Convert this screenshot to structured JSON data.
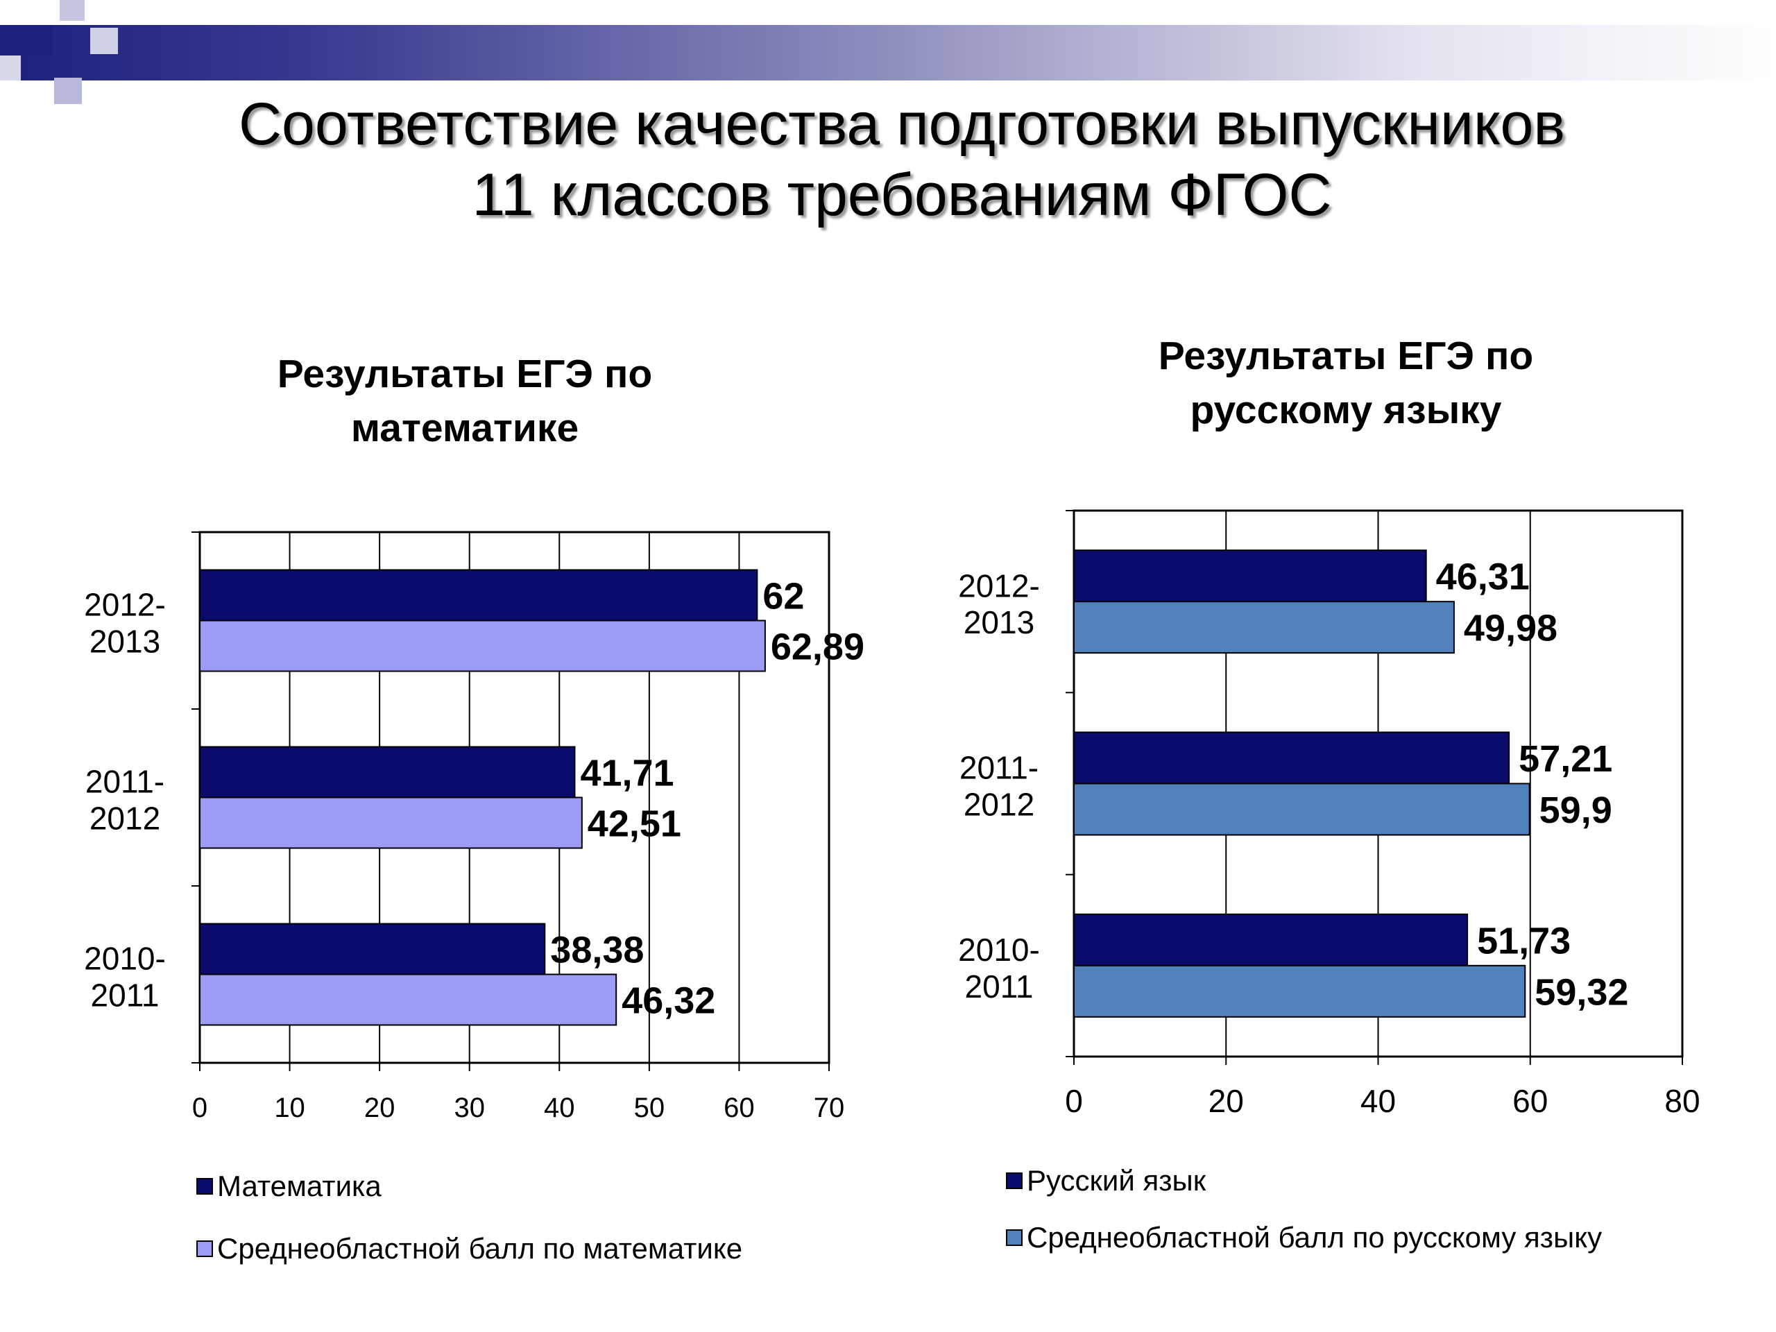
{
  "slide": {
    "title_line1": "Соответствие качества подготовки выпускников",
    "title_line2": "11 классов требованиям ФГОС"
  },
  "colors": {
    "header_band_start": "#1f1f80",
    "header_band_end": "#ffffff",
    "deco_square_dark": "#1f1f80",
    "deco_square_light": "#c6c6e0"
  },
  "chart_data": [
    {
      "type": "bar",
      "orientation": "horizontal",
      "title_line1": "Результаты ЕГЭ по",
      "title_line2": "математике",
      "categories": [
        "2010-2011",
        "2011-2012",
        "2012-2013"
      ],
      "category_labels": [
        [
          "2010-",
          "2011"
        ],
        [
          "2011-",
          "2012"
        ],
        [
          "2012-",
          "2013"
        ]
      ],
      "series": [
        {
          "name": "Математика",
          "values": [
            38.38,
            41.71,
            62
          ],
          "labels": [
            "38,38",
            "41,71",
            "62"
          ],
          "color": "#0b0b6e"
        },
        {
          "name": "Среднеобластной  балл  по  математике",
          "values": [
            46.32,
            42.51,
            62.89
          ],
          "labels": [
            "46,32",
            "42,51",
            "62,89"
          ],
          "color": "#9c9cf6"
        }
      ],
      "xlim": [
        0,
        70
      ],
      "xticks": [
        "0",
        "10",
        "20",
        "30",
        "40",
        "50",
        "60",
        "70"
      ],
      "grid": true,
      "legend_position": "bottom"
    },
    {
      "type": "bar",
      "orientation": "horizontal",
      "title_line1": "Результаты  ЕГЭ по",
      "title_line2": "русскому языку",
      "categories": [
        "2010-2011",
        "2011-2012",
        "2012-2013"
      ],
      "category_labels": [
        [
          "2010-",
          "2011"
        ],
        [
          "2011-",
          "2012"
        ],
        [
          "2012-",
          "2013"
        ]
      ],
      "series": [
        {
          "name": "Русский язык",
          "values": [
            51.73,
            57.21,
            46.31
          ],
          "labels": [
            "51,73",
            "57,21",
            "46,31"
          ],
          "color": "#0b0b6e"
        },
        {
          "name": "Среднеобластной  балл  по  русскому  языку",
          "values": [
            59.32,
            59.9,
            49.98
          ],
          "labels": [
            "59,32",
            "59,9",
            "49,98"
          ],
          "color": "#4f81bd"
        }
      ],
      "xlim": [
        0,
        80
      ],
      "xticks": [
        "0",
        "20",
        "40",
        "60",
        "80"
      ],
      "grid": true,
      "legend_position": "bottom"
    }
  ]
}
